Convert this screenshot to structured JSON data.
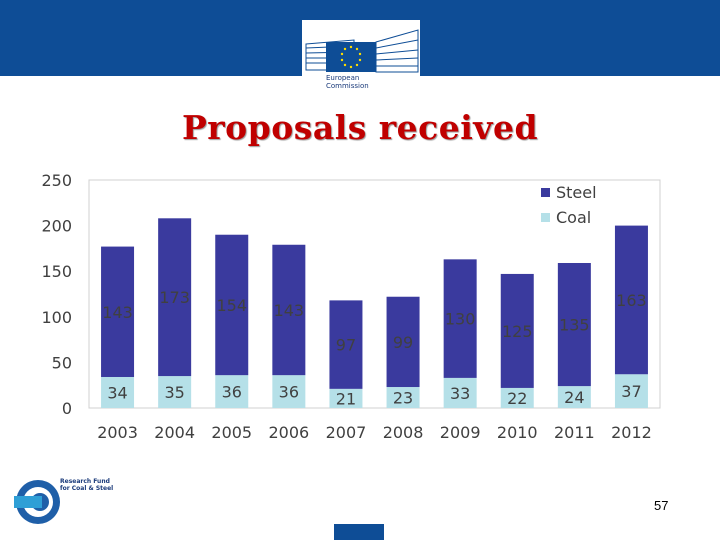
{
  "header": {
    "logo_line1": "European",
    "logo_line2": "Commission"
  },
  "slide": {
    "title": "Proposals received",
    "page_number": "57"
  },
  "footer_logo": {
    "line1": "Research Fund",
    "line2": "for Coal & Steel"
  },
  "colors": {
    "bar_blue": "#0e4d96",
    "steel": "#3a3a9e",
    "coal": "#b5e0e8",
    "title": "#c00000"
  },
  "chart_data": {
    "type": "bar",
    "stacked": true,
    "categories": [
      "2003",
      "2004",
      "2005",
      "2006",
      "2007",
      "2008",
      "2009",
      "2010",
      "2011",
      "2012"
    ],
    "series": [
      {
        "name": "Coal",
        "values": [
          34,
          35,
          36,
          36,
          21,
          23,
          33,
          22,
          24,
          37
        ]
      },
      {
        "name": "Steel",
        "values": [
          143,
          173,
          154,
          143,
          97,
          99,
          130,
          125,
          135,
          163
        ]
      }
    ],
    "legend": [
      "Steel",
      "Coal"
    ],
    "legend_position": "top-right",
    "y_ticks": [
      0,
      50,
      100,
      150,
      200,
      250
    ],
    "ylim": [
      0,
      250
    ],
    "title": "",
    "xlabel": "",
    "ylabel": "",
    "grid": false
  }
}
